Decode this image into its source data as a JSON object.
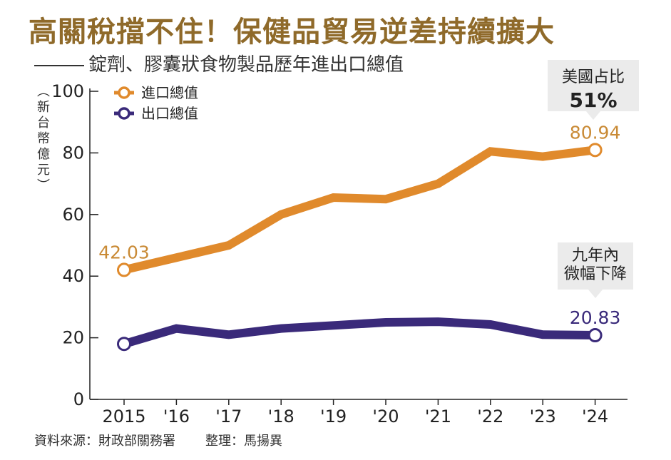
{
  "title": "高關稅擋不住！保健品貿易逆差持續擴大",
  "subtitle": "錠劑、膠囊狀食物製品歷年進出口總值",
  "unit_label": [
    "新",
    "台",
    "幣",
    "億",
    "元"
  ],
  "source": "資料來源：財政部關務署",
  "credit": "整理：馬揚異",
  "callouts": {
    "import_share_label": "美國占比",
    "import_share_value": "51%",
    "export_note_line1": "九年內",
    "export_note_line2": "微幅下降"
  },
  "colors": {
    "import": "#e08a2c",
    "export": "#3a2a7a",
    "import_label": "#c98a35",
    "export_label": "#3a2a7a"
  },
  "chart_data": {
    "type": "line",
    "x": [
      "2015",
      "'16",
      "'17",
      "'18",
      "'19",
      "'20",
      "'21",
      "'22",
      "'23",
      "'24"
    ],
    "ylim": [
      0,
      100
    ],
    "yticks": [
      0,
      20,
      40,
      60,
      80,
      100
    ],
    "series": [
      {
        "name": "進口總值",
        "values": [
          42.03,
          46,
          50,
          60,
          65.5,
          65,
          70,
          80.5,
          78.8,
          80.94
        ]
      },
      {
        "name": "出口總值",
        "values": [
          18,
          23,
          21,
          23,
          24,
          25,
          25.2,
          24.3,
          21,
          20.83
        ]
      }
    ],
    "data_labels": [
      {
        "series": 0,
        "index": 0,
        "text": "42.03"
      },
      {
        "series": 0,
        "index": 9,
        "text": "80.94"
      },
      {
        "series": 1,
        "index": 9,
        "text": "20.83"
      }
    ],
    "legend": "top-left",
    "grid": false
  }
}
